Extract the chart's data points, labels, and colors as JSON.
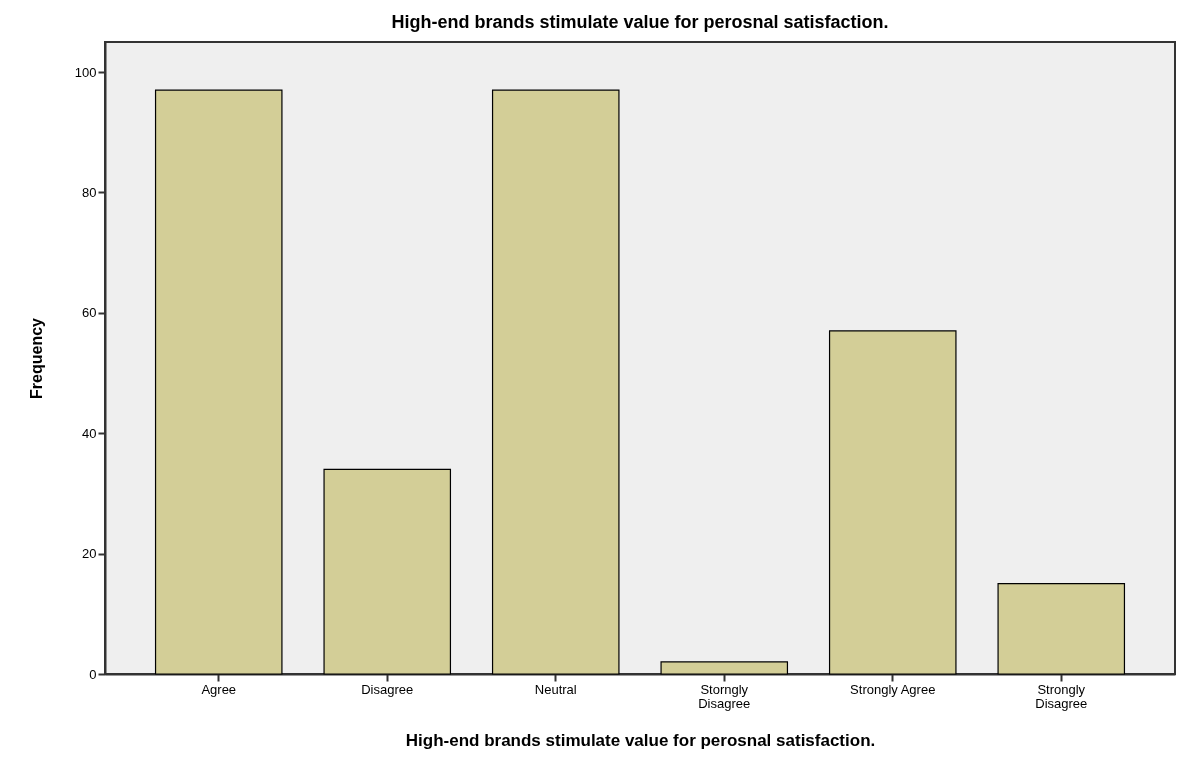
{
  "chart_data": {
    "type": "bar",
    "title": "High-end brands stimulate value for perosnal satisfaction.",
    "xlabel": "High-end brands stimulate value for perosnal satisfaction.",
    "ylabel": "Frequency",
    "categories": [
      "Agree",
      "Disagree",
      "Neutral",
      "Storngly Disagree",
      "Strongly Agree",
      "Strongly Disagree"
    ],
    "values": [
      97,
      34,
      97,
      2,
      57,
      15
    ],
    "color": "#d3ce97",
    "ylim": [
      0,
      105
    ],
    "yticks": [
      0,
      20,
      40,
      60,
      80,
      100
    ],
    "grid": false
  }
}
